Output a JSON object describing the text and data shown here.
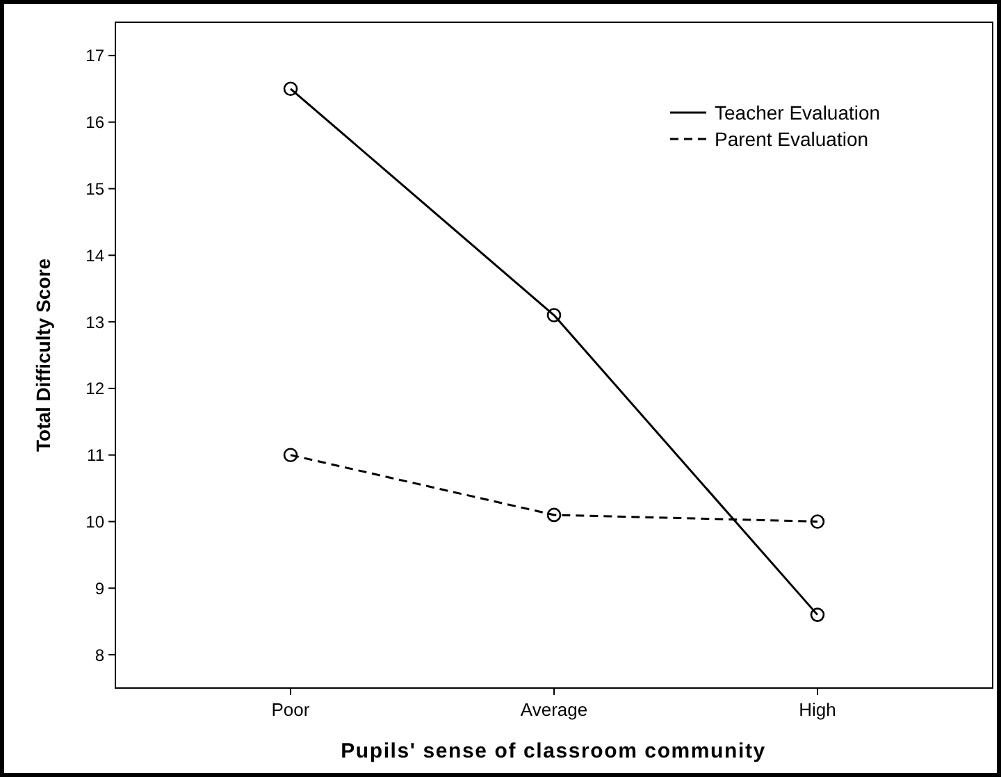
{
  "chart_data": {
    "type": "line",
    "xlabel": "Pupils' sense of classroom community",
    "ylabel": "Total Difficulty Score",
    "categories": [
      "Poor",
      "Average",
      "High"
    ],
    "series": [
      {
        "name": "Teacher Evaluation",
        "color": "#000000",
        "values": [
          16.5,
          13.1,
          8.6
        ],
        "line_style": "solid"
      },
      {
        "name": "Parent Evaluation",
        "color": "#000000",
        "values": [
          11.0,
          10.1,
          10.0
        ],
        "line_style": "dashed"
      }
    ],
    "ylim": [
      7.5,
      17.5
    ],
    "yticks": [
      8,
      9,
      10,
      11,
      12,
      13,
      14,
      15,
      16,
      17
    ],
    "marker": "circle",
    "legend": "top right",
    "grid": false
  }
}
